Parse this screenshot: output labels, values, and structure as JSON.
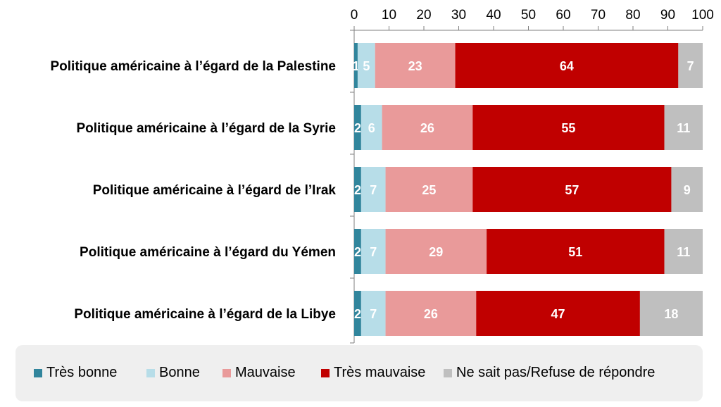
{
  "chart_data": {
    "type": "bar",
    "orientation": "horizontal",
    "stacked": true,
    "categories": [
      "Politique américaine à l’égard de la Palestine",
      "Politique américaine à l’égard de la Syrie",
      "Politique américaine à l’égard de l’Irak",
      "Politique américaine à l’égard du Yémen",
      "Politique américaine à l’égard de la Libye"
    ],
    "series": [
      {
        "name": "Très bonne",
        "color": "#31859c",
        "values": [
          1,
          2,
          2,
          2,
          2
        ]
      },
      {
        "name": "Bonne",
        "color": "#b7dde8",
        "values": [
          5,
          6,
          7,
          7,
          7
        ]
      },
      {
        "name": "Mauvaise",
        "color": "#e99a9a",
        "values": [
          23,
          26,
          25,
          29,
          26
        ]
      },
      {
        "name": "Très mauvaise",
        "color": "#c00000",
        "values": [
          64,
          55,
          57,
          51,
          47
        ]
      },
      {
        "name": "Ne sait pas/Refuse de répondre",
        "color": "#bfbfbf",
        "values": [
          7,
          11,
          9,
          11,
          18
        ]
      }
    ],
    "xlim": [
      0,
      100
    ],
    "xticks": [
      0,
      10,
      20,
      30,
      40,
      50,
      60,
      70,
      80,
      90,
      100
    ],
    "axis_position": "top",
    "grid": false,
    "legend_position": "bottom",
    "title": "",
    "xlabel": "",
    "ylabel": ""
  }
}
